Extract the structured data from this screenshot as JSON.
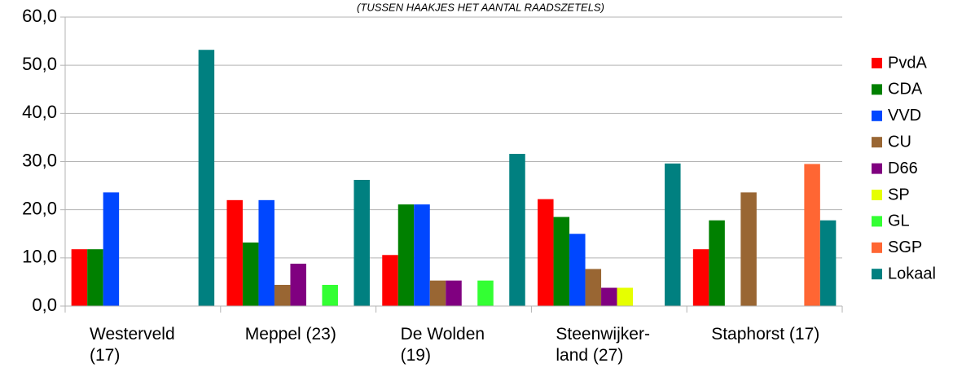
{
  "chart_data": {
    "type": "bar",
    "subtitle": "(TUSSEN HAAKJES HET AANTAL RAADSZETELS)",
    "categories": [
      "Westerveld\n(17)",
      "Meppel (23)",
      "De Wolden\n(19)",
      "Steenwijker-\nland (27)",
      "Staphorst (17)"
    ],
    "series": [
      {
        "name": "PvdA",
        "color": "#ff0000",
        "values": [
          11.8,
          22.0,
          10.6,
          22.2,
          11.8
        ]
      },
      {
        "name": "CDA",
        "color": "#008000",
        "values": [
          11.8,
          13.2,
          21.1,
          18.5,
          17.8
        ]
      },
      {
        "name": "VVD",
        "color": "#0047ff",
        "values": [
          23.6,
          22.0,
          21.1,
          15.0,
          null
        ]
      },
      {
        "name": "CU",
        "color": "#996633",
        "values": [
          null,
          4.4,
          5.3,
          7.7,
          23.6
        ]
      },
      {
        "name": "D66",
        "color": "#800080",
        "values": [
          null,
          8.8,
          5.3,
          3.8,
          null
        ]
      },
      {
        "name": "SP",
        "color": "#e6ff00",
        "values": [
          null,
          null,
          null,
          3.8,
          null
        ]
      },
      {
        "name": "GL",
        "color": "#33ff33",
        "values": [
          null,
          4.4,
          5.3,
          null,
          null
        ]
      },
      {
        "name": "SGP",
        "color": "#ff6633",
        "values": [
          null,
          null,
          null,
          null,
          29.5
        ]
      },
      {
        "name": "Lokaal",
        "color": "#008080",
        "values": [
          53.2,
          26.2,
          31.6,
          29.6,
          17.8
        ]
      }
    ],
    "ylim": [
      0,
      60
    ],
    "yticks": [
      {
        "value": 0,
        "label": "0,0"
      },
      {
        "value": 10,
        "label": "10,0"
      },
      {
        "value": 20,
        "label": "20,0"
      },
      {
        "value": 30,
        "label": "30,0"
      },
      {
        "value": 40,
        "label": "40,0"
      },
      {
        "value": 50,
        "label": "50,0"
      },
      {
        "value": 60,
        "label": "60,0"
      }
    ],
    "grid": true,
    "legend": "right"
  }
}
